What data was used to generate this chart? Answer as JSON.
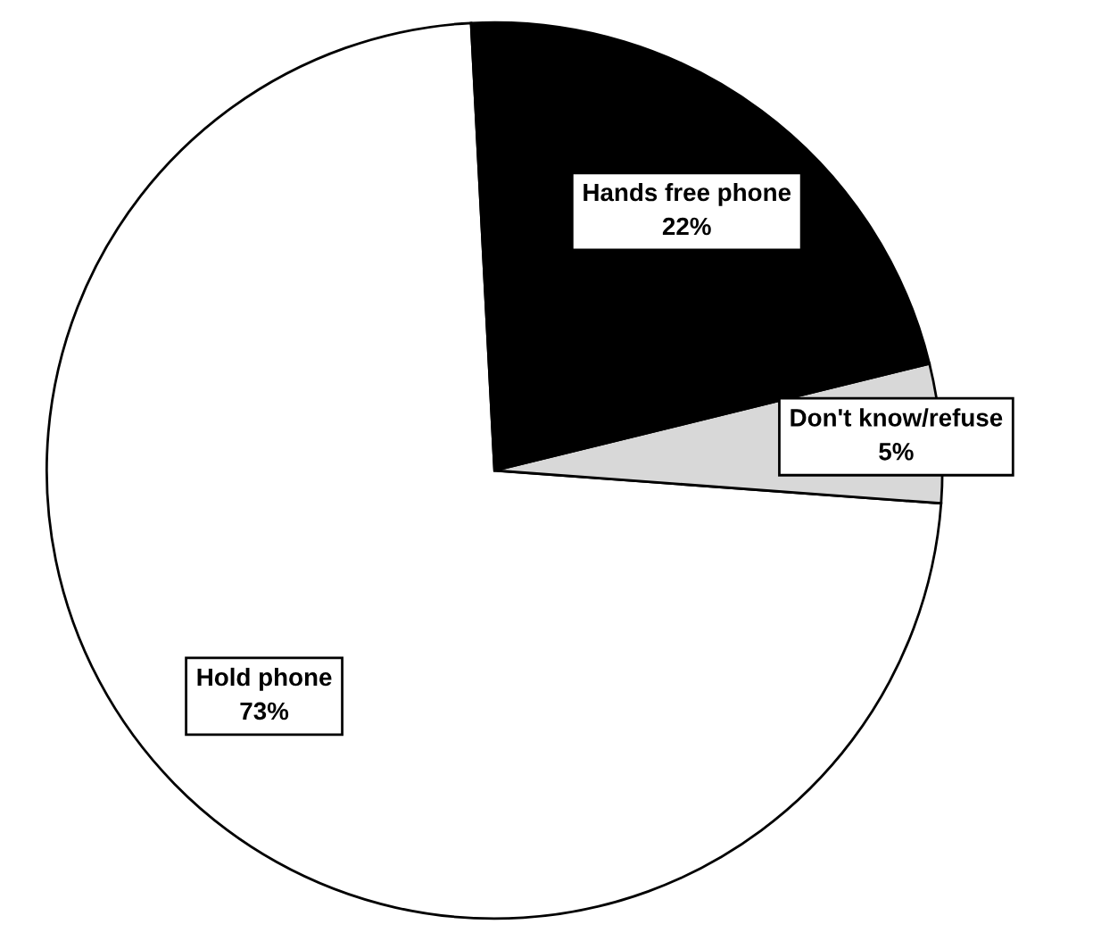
{
  "chart_data": {
    "type": "pie",
    "categories": [
      "Hold phone",
      "Don't know/refuse",
      "Hands free phone"
    ],
    "values": [
      73,
      5,
      22
    ],
    "value_labels": [
      "73%",
      "5%",
      "22%"
    ],
    "colors": [
      "#ffffff",
      "#d8d8d8",
      "#000000"
    ]
  }
}
